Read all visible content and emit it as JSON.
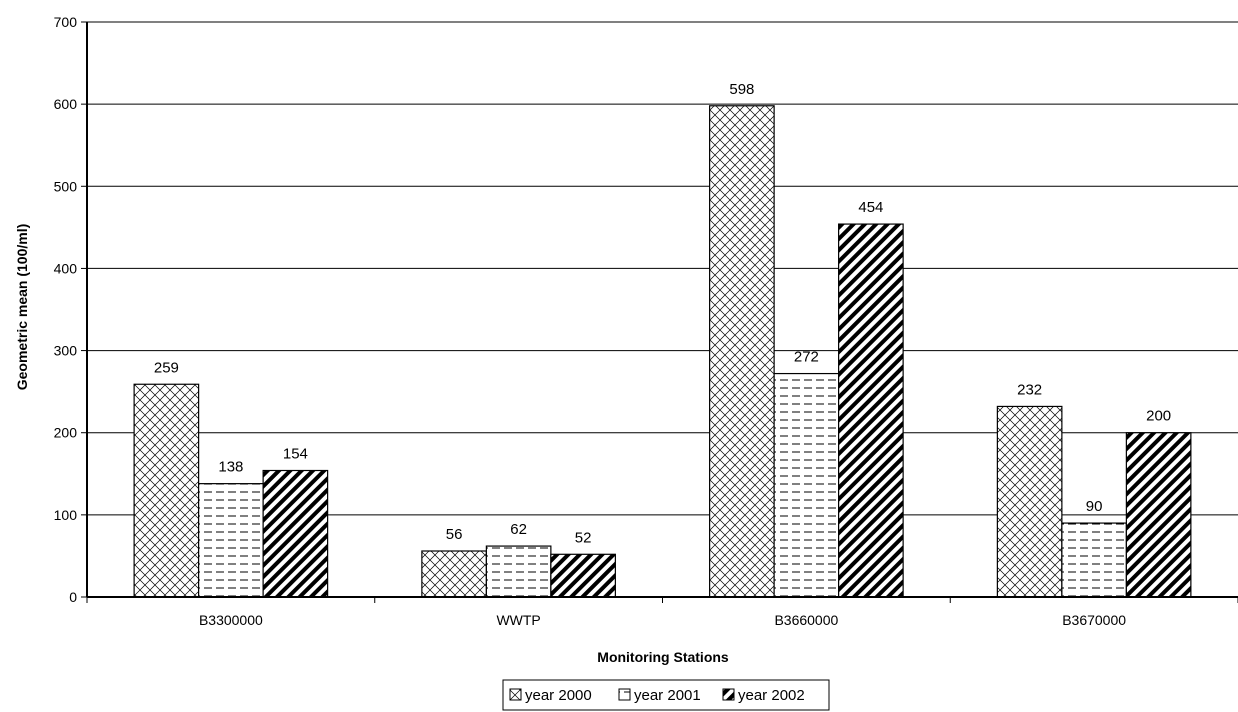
{
  "chart_data": {
    "type": "bar",
    "categories": [
      "B3300000",
      "WWTP",
      "B3660000",
      "B3670000"
    ],
    "series": [
      {
        "name": "year 2000",
        "values": [
          259,
          56,
          598,
          232
        ],
        "pattern": "crosshatch"
      },
      {
        "name": "year 2001",
        "values": [
          138,
          62,
          272,
          90
        ],
        "pattern": "dashed-horizontal"
      },
      {
        "name": "year 2002",
        "values": [
          154,
          52,
          454,
          200
        ],
        "pattern": "wide-diagonal"
      }
    ],
    "title": "",
    "xlabel": "Monitoring Stations",
    "ylabel": "Geometric mean (100/ml)",
    "ylim": [
      0,
      700
    ],
    "yticks": [
      0,
      100,
      200,
      300,
      400,
      500,
      600,
      700
    ],
    "grid": true,
    "legend_position": "bottom",
    "data_labels": true
  }
}
